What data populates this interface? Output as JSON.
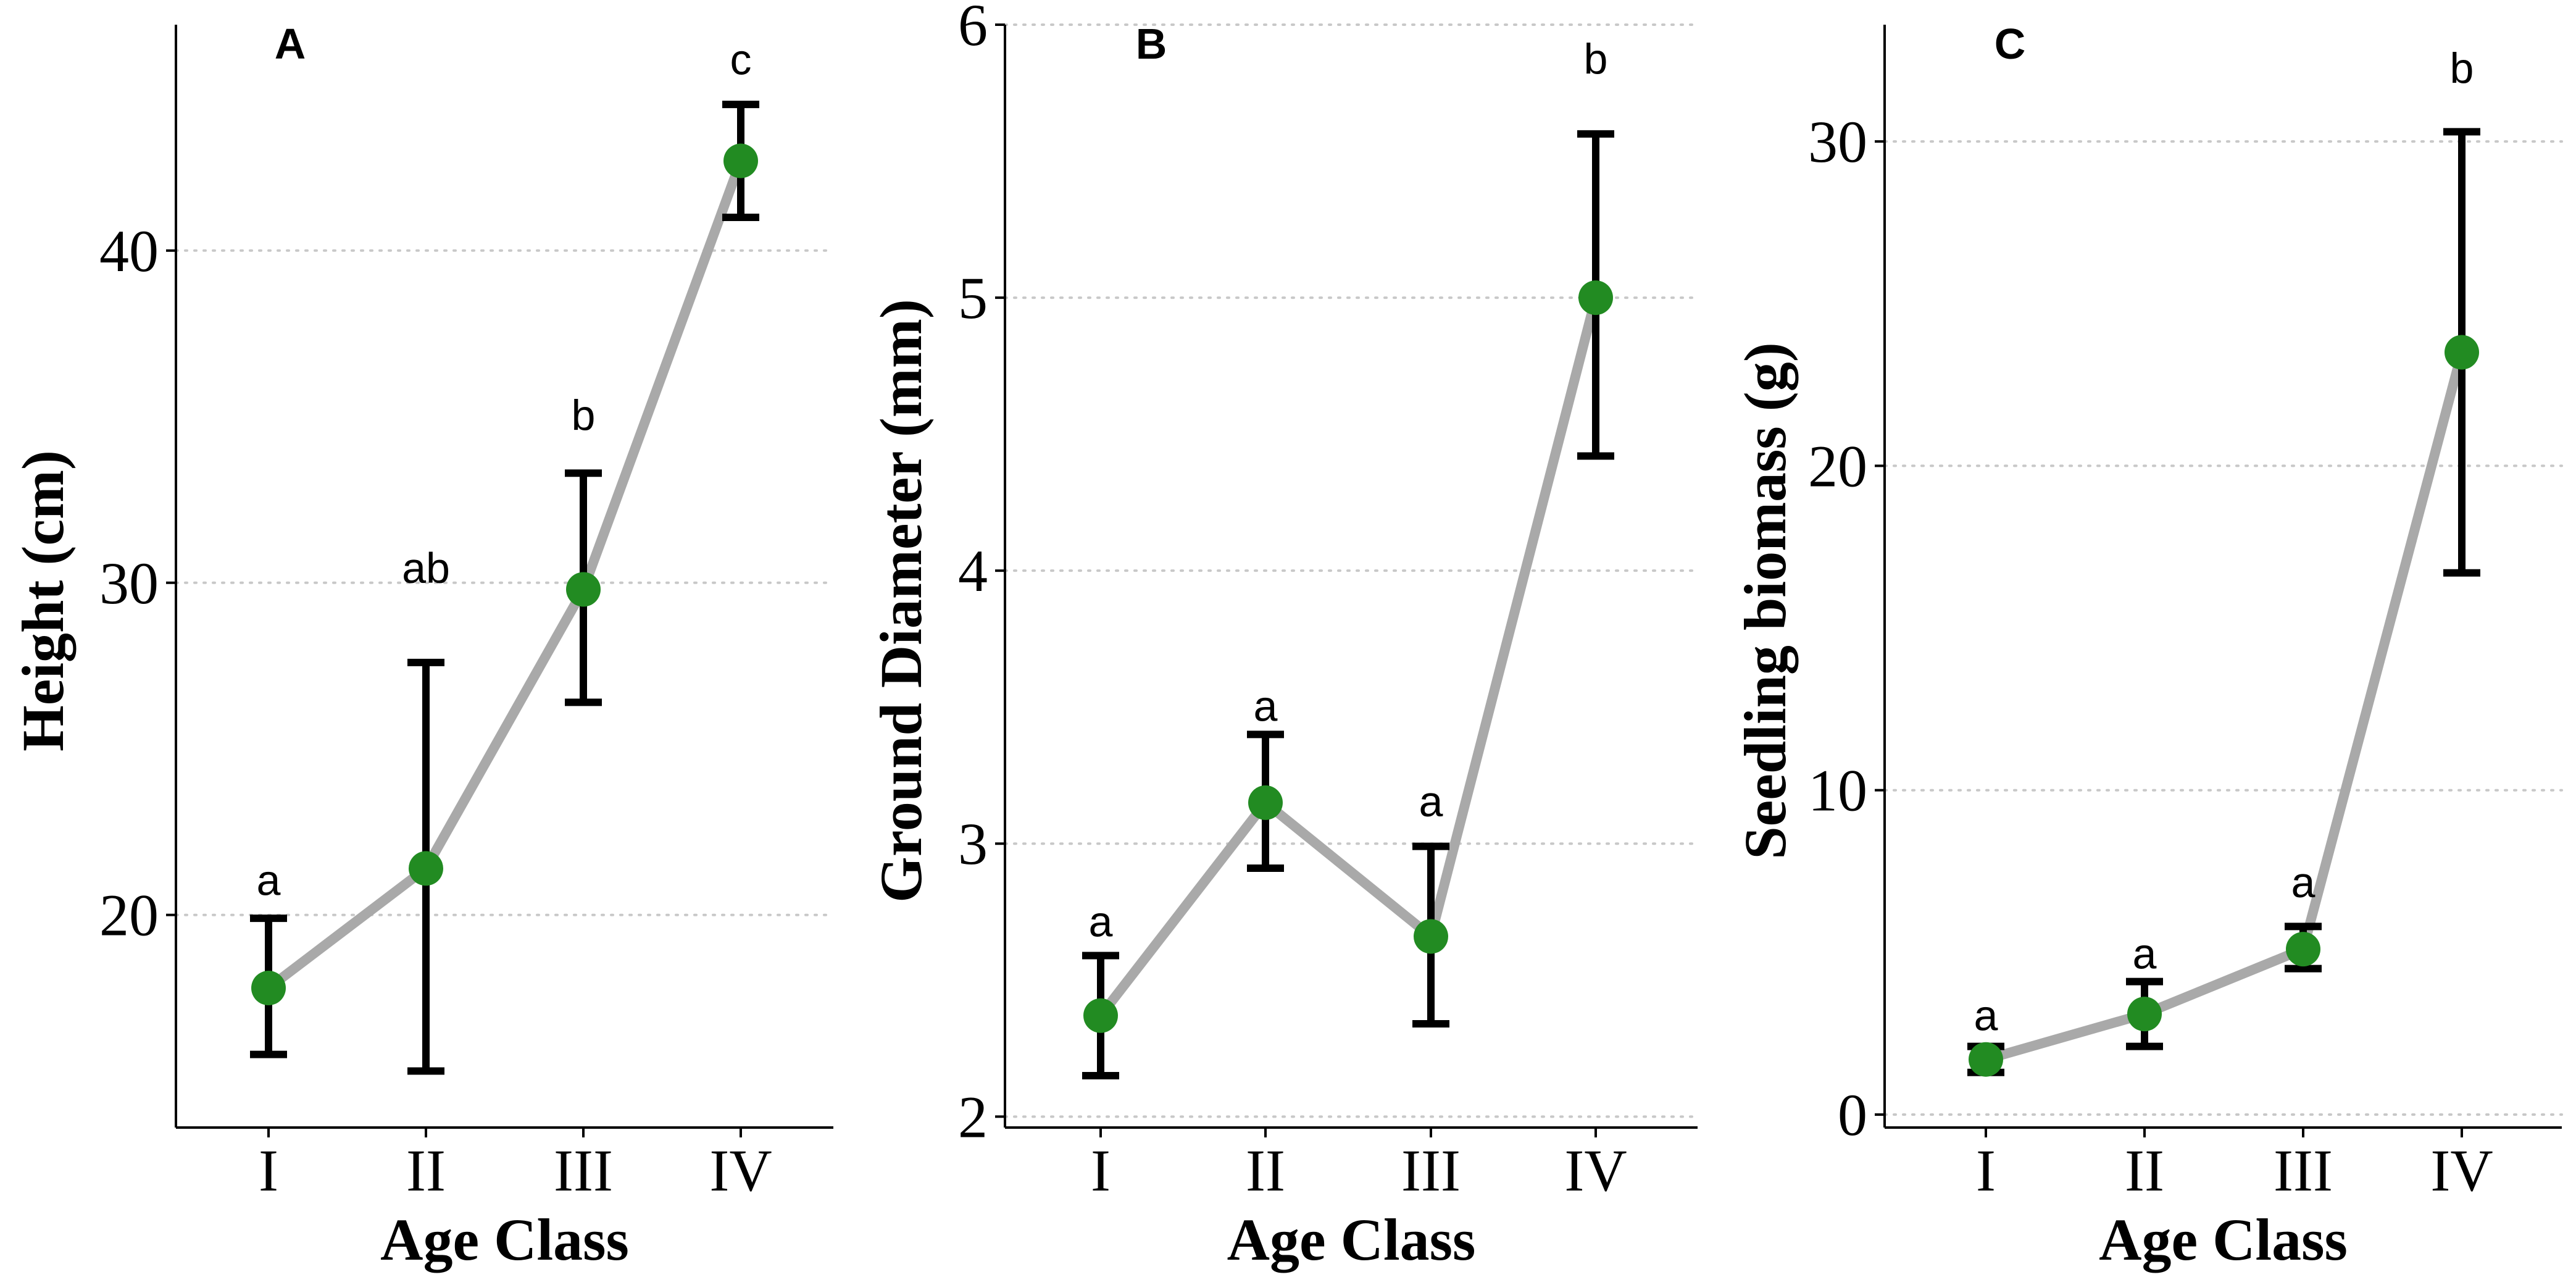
{
  "colors": {
    "point": "#228B22",
    "line": "#A9A9A9",
    "error_bar": "#000000"
  },
  "chart_data": [
    {
      "type": "line",
      "panel_label": "A",
      "xlabel": "Age Class",
      "ylabel": "Height (cm)",
      "categories": [
        "I",
        "II",
        "III",
        "IV"
      ],
      "values": [
        17.8,
        21.4,
        29.8,
        42.7
      ],
      "error_low": [
        15.8,
        15.3,
        26.4,
        41.0
      ],
      "error_high": [
        19.9,
        27.6,
        33.3,
        44.4
      ],
      "significance_letters": [
        "a",
        "ab",
        "b",
        "c"
      ],
      "significance_y": [
        20.6,
        30.0,
        34.6,
        45.3
      ],
      "y_ticks": [
        20,
        30,
        40
      ],
      "y_tick_labels": [
        "20",
        "30",
        "40"
      ],
      "ylim": [
        13.6,
        46.8
      ],
      "grid": "horizontal dotted"
    },
    {
      "type": "line",
      "panel_label": "B",
      "xlabel": "Age Class",
      "ylabel": "Ground Diameter (mm)",
      "categories": [
        "I",
        "II",
        "III",
        "IV"
      ],
      "values": [
        2.37,
        3.15,
        2.66,
        5.0
      ],
      "error_low": [
        2.15,
        2.91,
        2.34,
        4.42
      ],
      "error_high": [
        2.59,
        3.4,
        2.99,
        5.6
      ],
      "significance_letters": [
        "a",
        "a",
        "a",
        "b"
      ],
      "significance_y": [
        2.66,
        3.45,
        3.1,
        5.82
      ],
      "y_ticks": [
        2,
        3,
        4,
        5,
        6
      ],
      "y_tick_labels": [
        "2",
        "3",
        "4",
        "5",
        "6"
      ],
      "ylim": [
        1.96,
        6.0
      ],
      "grid": "horizontal dotted"
    },
    {
      "type": "line",
      "panel_label": "C",
      "xlabel": "Age Class",
      "ylabel": "Seedling biomass (g)",
      "categories": [
        "I",
        "II",
        "III",
        "IV"
      ],
      "values": [
        1.7,
        3.1,
        5.1,
        23.5
      ],
      "error_low": [
        1.3,
        2.1,
        4.5,
        16.7
      ],
      "error_high": [
        2.1,
        4.1,
        5.8,
        30.3
      ],
      "significance_letters": [
        "a",
        "a",
        "a",
        "b"
      ],
      "significance_y": [
        2.6,
        4.5,
        6.7,
        31.8
      ],
      "y_ticks": [
        0,
        10,
        20,
        30
      ],
      "y_tick_labels": [
        "0",
        "10",
        "20",
        "30"
      ],
      "ylim": [
        -0.4,
        33.6
      ],
      "grid": "horizontal dotted"
    }
  ]
}
